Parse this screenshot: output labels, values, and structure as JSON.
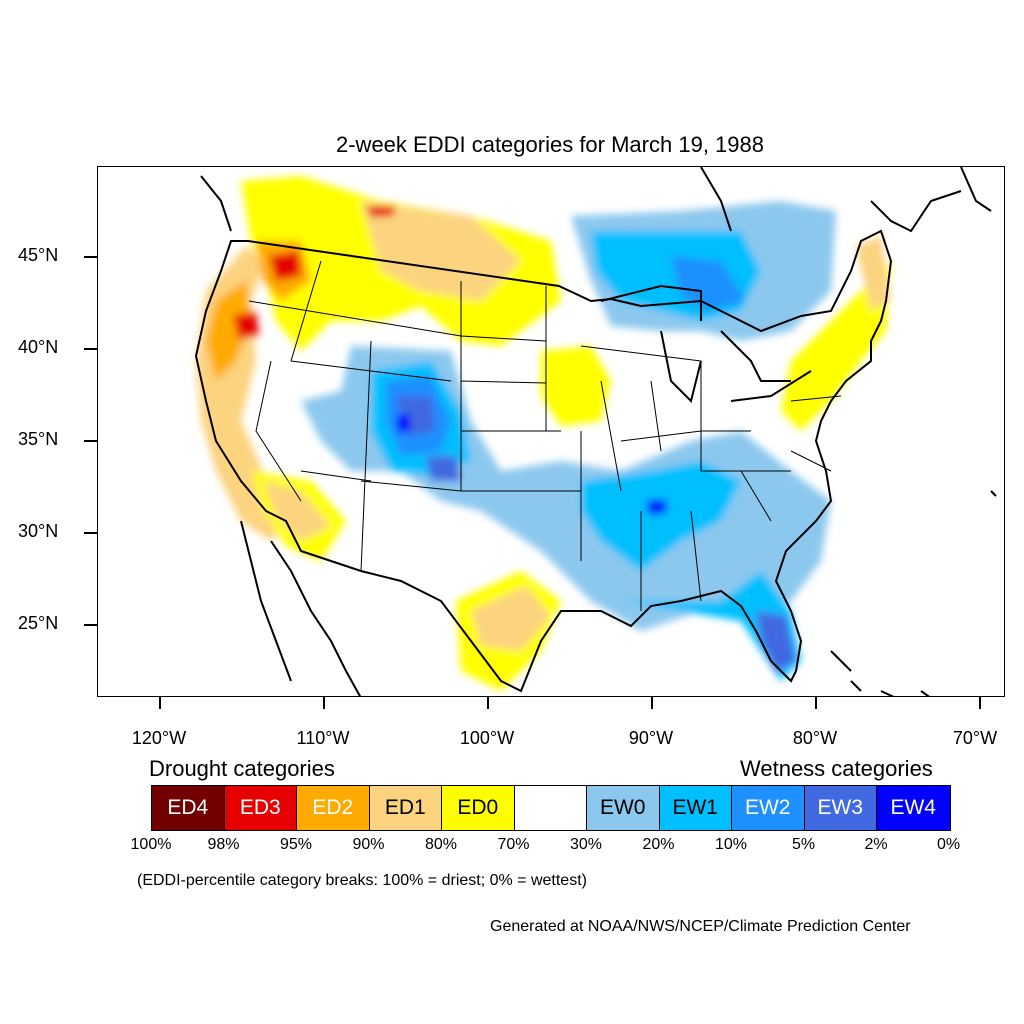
{
  "title": "2-week EDDI categories for March 19, 1988",
  "lat_labels": [
    "45°N",
    "40°N",
    "35°N",
    "30°N",
    "25°N"
  ],
  "lon_labels": [
    "120°W",
    "110°W",
    "100°W",
    "90°W",
    "80°W",
    "70°W"
  ],
  "legend": {
    "drought_heading": "Drought categories",
    "wetness_heading": "Wetness categories",
    "categories": [
      {
        "label": "ED4",
        "color": "#730000",
        "text_color": "#ffffff"
      },
      {
        "label": "ED3",
        "color": "#e60000",
        "text_color": "#ffffff"
      },
      {
        "label": "ED2",
        "color": "#ffaa00",
        "text_color": "#ffffff"
      },
      {
        "label": "ED1",
        "color": "#fcd37f",
        "text_color": "#000000"
      },
      {
        "label": "ED0",
        "color": "#ffff00",
        "text_color": "#000000"
      },
      {
        "label": "",
        "color": "#ffffff",
        "text_color": "#000000"
      },
      {
        "label": "EW0",
        "color": "#8cc8ee",
        "text_color": "#000000"
      },
      {
        "label": "EW1",
        "color": "#00bfff",
        "text_color": "#000000"
      },
      {
        "label": "EW2",
        "color": "#1e90ff",
        "text_color": "#ffffff"
      },
      {
        "label": "EW3",
        "color": "#4169e1",
        "text_color": "#ffffff"
      },
      {
        "label": "EW4",
        "color": "#0000ff",
        "text_color": "#ffffff"
      }
    ],
    "percentiles": [
      "100%",
      "98%",
      "95%",
      "90%",
      "80%",
      "70%",
      "30%",
      "20%",
      "10%",
      "5%",
      "2%",
      "0%"
    ]
  },
  "note": "(EDDI-percentile category breaks: 100% = driest; 0% = wettest)",
  "credit": "Generated at NOAA/NWS/NCEP/Climate Prediction Center"
}
